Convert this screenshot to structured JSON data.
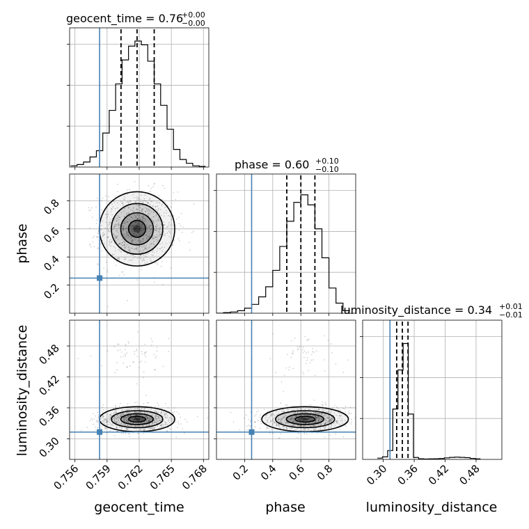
{
  "chart_data": {
    "type": "corner",
    "parameters": [
      "geocent_time",
      "phase",
      "luminosity_distance"
    ],
    "axes": {
      "geocent_time": {
        "range": [
          0.7555,
          0.7685
        ],
        "ticks": [
          "0.756",
          "0.759",
          "0.762",
          "0.765",
          "0.768"
        ],
        "tick_values": [
          0.756,
          0.759,
          0.762,
          0.765,
          0.768
        ]
      },
      "phase": {
        "range": [
          0.0,
          0.99
        ],
        "ticks": [
          "0.2",
          "0.4",
          "0.6",
          "0.8"
        ],
        "tick_values": [
          0.2,
          0.4,
          0.6,
          0.8
        ]
      },
      "luminosity_distance": {
        "range": [
          0.26,
          0.53
        ],
        "ticks": [
          "0.30",
          "0.36",
          "0.42",
          "0.48"
        ],
        "tick_values": [
          0.3,
          0.36,
          0.42,
          0.48
        ]
      }
    },
    "truths": {
      "geocent_time": 0.7583,
      "phase": 0.25,
      "luminosity_distance": 0.313
    },
    "titles": [
      {
        "param": "geocent_time",
        "text": "geocent_time = 0.76",
        "plus": "+0.00",
        "minus": "−0.00"
      },
      {
        "param": "phase",
        "text": "phase = 0.60",
        "plus": "+0.10",
        "minus": "−0.10"
      },
      {
        "param": "luminosity_distance",
        "text": "luminosity_distance = 0.34",
        "plus": "+0.01",
        "minus": "−0.01"
      }
    ],
    "quantiles": {
      "geocent_time": [
        0.7603,
        0.7618,
        0.7634
      ],
      "phase": [
        0.5,
        0.6,
        0.7
      ],
      "luminosity_distance": [
        0.326,
        0.337,
        0.348
      ]
    },
    "histograms": {
      "geocent_time": {
        "edges": [
          0.7556,
          0.7562,
          0.7568,
          0.7574,
          0.758,
          0.7586,
          0.7592,
          0.7598,
          0.7604,
          0.761,
          0.7616,
          0.7622,
          0.7628,
          0.7634,
          0.764,
          0.7646,
          0.7652,
          0.7658,
          0.7664,
          0.767,
          0.7676,
          0.7682
        ],
        "counts": [
          0.01,
          0.02,
          0.04,
          0.08,
          0.13,
          0.27,
          0.45,
          0.66,
          0.85,
          0.96,
          1.0,
          0.97,
          0.84,
          0.66,
          0.49,
          0.3,
          0.14,
          0.06,
          0.03,
          0.01,
          0.005
        ]
      },
      "phase": {
        "edges": [
          0.0,
          0.05,
          0.1,
          0.15,
          0.2,
          0.25,
          0.3,
          0.35,
          0.4,
          0.45,
          0.5,
          0.55,
          0.6,
          0.65,
          0.7,
          0.75,
          0.8,
          0.85,
          0.9,
          0.95
        ],
        "counts": [
          0.0,
          0.005,
          0.01,
          0.02,
          0.04,
          0.07,
          0.13,
          0.21,
          0.34,
          0.53,
          0.73,
          0.88,
          0.94,
          0.86,
          0.67,
          0.44,
          0.2,
          0.08,
          0.02
        ]
      },
      "luminosity_distance": {
        "edges": [
          0.2885,
          0.2985,
          0.3085,
          0.3185,
          0.3285,
          0.3385,
          0.3485,
          0.3585,
          0.3685,
          0.3785,
          0.3885,
          0.3985,
          0.4085,
          0.4185,
          0.4285,
          0.4385,
          0.4485,
          0.4585,
          0.4685,
          0.4785,
          0.4885
        ],
        "counts": [
          0.01,
          0.02,
          0.07,
          0.4,
          0.71,
          0.92,
          0.36,
          0.015,
          0.005,
          0.003,
          0.004,
          0.005,
          0.007,
          0.012,
          0.016,
          0.018,
          0.016,
          0.014,
          0.008,
          0.004
        ]
      }
    },
    "mode_2d": {
      "phase_vs_geocent_time": {
        "x": 0.7618,
        "y": 0.6
      },
      "luminosity_distance_vs_geocent_time": {
        "x": 0.7618,
        "y": 0.338
      },
      "luminosity_distance_vs_phase": {
        "x": 0.63,
        "y": 0.338
      }
    }
  }
}
